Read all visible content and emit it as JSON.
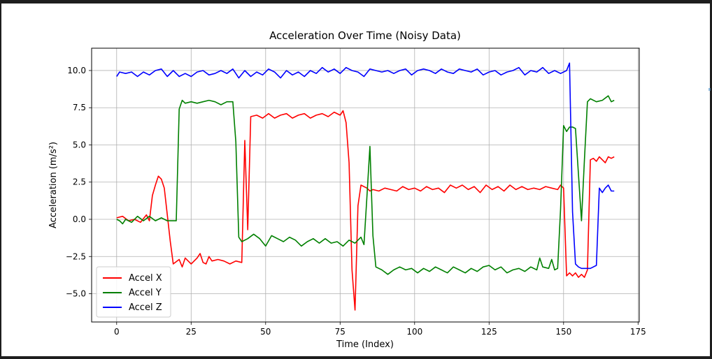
{
  "chart_data": {
    "type": "line",
    "title": "Acceleration Over Time (Noisy Data)",
    "xlabel": "Time (Index)",
    "ylabel": "Acceleration (m/s²)",
    "xlim": [
      -8.4,
      175.4
    ],
    "ylim": [
      -6.9,
      11.5
    ],
    "xticks": [
      0,
      25,
      50,
      75,
      100,
      125,
      150,
      175
    ],
    "yticks": [
      -5.0,
      -2.5,
      0.0,
      2.5,
      5.0,
      7.5,
      10.0
    ],
    "grid": true,
    "legend": "bottom-left",
    "series": [
      {
        "name": "Accel X",
        "color": "#ff0000",
        "points": [
          [
            0,
            0.1
          ],
          [
            2,
            0.2
          ],
          [
            4,
            -0.1
          ],
          [
            6,
            0.0
          ],
          [
            8,
            -0.2
          ],
          [
            10,
            0.3
          ],
          [
            11,
            -0.1
          ],
          [
            12,
            1.6
          ],
          [
            13,
            2.3
          ],
          [
            14,
            2.9
          ],
          [
            15,
            2.7
          ],
          [
            16,
            2.1
          ],
          [
            17,
            0.3
          ],
          [
            18,
            -1.5
          ],
          [
            19,
            -3.0
          ],
          [
            21,
            -2.7
          ],
          [
            22,
            -3.2
          ],
          [
            23,
            -2.6
          ],
          [
            25,
            -3.0
          ],
          [
            27,
            -2.6
          ],
          [
            28,
            -2.3
          ],
          [
            29,
            -2.9
          ],
          [
            30,
            -3.0
          ],
          [
            31,
            -2.5
          ],
          [
            32,
            -2.8
          ],
          [
            34,
            -2.7
          ],
          [
            36,
            -2.8
          ],
          [
            38,
            -3.0
          ],
          [
            40,
            -2.8
          ],
          [
            42,
            -2.9
          ],
          [
            43,
            5.3
          ],
          [
            44,
            -0.7
          ],
          [
            45,
            6.9
          ],
          [
            47,
            7.0
          ],
          [
            49,
            6.8
          ],
          [
            51,
            7.1
          ],
          [
            53,
            6.8
          ],
          [
            55,
            7.0
          ],
          [
            57,
            7.1
          ],
          [
            59,
            6.8
          ],
          [
            61,
            7.0
          ],
          [
            63,
            7.1
          ],
          [
            65,
            6.8
          ],
          [
            67,
            7.0
          ],
          [
            69,
            7.1
          ],
          [
            71,
            6.9
          ],
          [
            73,
            7.2
          ],
          [
            75,
            7.0
          ],
          [
            76,
            7.3
          ],
          [
            77,
            6.5
          ],
          [
            78,
            3.8
          ],
          [
            79,
            -3.4
          ],
          [
            80,
            -6.1
          ],
          [
            81,
            0.9
          ],
          [
            82,
            2.3
          ],
          [
            84,
            2.1
          ],
          [
            85,
            1.9
          ],
          [
            86,
            2.0
          ],
          [
            88,
            1.9
          ],
          [
            90,
            2.1
          ],
          [
            92,
            2.0
          ],
          [
            94,
            1.9
          ],
          [
            96,
            2.2
          ],
          [
            98,
            2.0
          ],
          [
            100,
            2.1
          ],
          [
            102,
            1.9
          ],
          [
            104,
            2.2
          ],
          [
            106,
            2.0
          ],
          [
            108,
            2.1
          ],
          [
            110,
            1.8
          ],
          [
            112,
            2.3
          ],
          [
            114,
            2.1
          ],
          [
            116,
            2.3
          ],
          [
            118,
            2.0
          ],
          [
            120,
            2.2
          ],
          [
            122,
            1.8
          ],
          [
            124,
            2.3
          ],
          [
            126,
            2.0
          ],
          [
            128,
            2.2
          ],
          [
            130,
            1.9
          ],
          [
            132,
            2.3
          ],
          [
            134,
            2.0
          ],
          [
            136,
            2.2
          ],
          [
            138,
            2.0
          ],
          [
            140,
            2.1
          ],
          [
            142,
            2.0
          ],
          [
            144,
            2.2
          ],
          [
            146,
            2.1
          ],
          [
            148,
            2.0
          ],
          [
            149,
            2.3
          ],
          [
            150,
            2.1
          ],
          [
            151,
            -3.8
          ],
          [
            152,
            -3.6
          ],
          [
            153,
            -3.8
          ],
          [
            154,
            -3.6
          ],
          [
            155,
            -3.9
          ],
          [
            156,
            -3.7
          ],
          [
            157,
            -3.9
          ],
          [
            158,
            -3.4
          ],
          [
            159,
            4.0
          ],
          [
            160,
            4.1
          ],
          [
            161,
            3.9
          ],
          [
            162,
            4.2
          ],
          [
            163,
            4.0
          ],
          [
            164,
            3.8
          ],
          [
            165,
            4.2
          ],
          [
            166,
            4.1
          ],
          [
            167,
            4.2
          ]
        ]
      },
      {
        "name": "Accel Y",
        "color": "#008000",
        "points": [
          [
            0,
            0.0
          ],
          [
            1,
            -0.1
          ],
          [
            2,
            -0.3
          ],
          [
            3,
            0.0
          ],
          [
            5,
            -0.2
          ],
          [
            7,
            0.2
          ],
          [
            9,
            -0.1
          ],
          [
            11,
            0.2
          ],
          [
            13,
            -0.1
          ],
          [
            15,
            0.1
          ],
          [
            17,
            -0.1
          ],
          [
            19,
            -0.1
          ],
          [
            20,
            -0.1
          ],
          [
            21,
            7.4
          ],
          [
            22,
            8.0
          ],
          [
            23,
            7.8
          ],
          [
            25,
            7.9
          ],
          [
            27,
            7.8
          ],
          [
            29,
            7.9
          ],
          [
            31,
            8.0
          ],
          [
            33,
            7.9
          ],
          [
            35,
            7.7
          ],
          [
            37,
            7.9
          ],
          [
            39,
            7.9
          ],
          [
            40,
            5.2
          ],
          [
            41,
            -1.2
          ],
          [
            42,
            -1.5
          ],
          [
            44,
            -1.3
          ],
          [
            46,
            -1.0
          ],
          [
            48,
            -1.3
          ],
          [
            50,
            -1.8
          ],
          [
            52,
            -1.1
          ],
          [
            54,
            -1.3
          ],
          [
            56,
            -1.5
          ],
          [
            58,
            -1.2
          ],
          [
            60,
            -1.4
          ],
          [
            62,
            -1.8
          ],
          [
            64,
            -1.5
          ],
          [
            66,
            -1.3
          ],
          [
            68,
            -1.6
          ],
          [
            70,
            -1.3
          ],
          [
            72,
            -1.6
          ],
          [
            74,
            -1.5
          ],
          [
            76,
            -1.8
          ],
          [
            78,
            -1.4
          ],
          [
            80,
            -1.6
          ],
          [
            82,
            -1.2
          ],
          [
            83,
            -1.7
          ],
          [
            84,
            1.5
          ],
          [
            85,
            4.9
          ],
          [
            86,
            -1.1
          ],
          [
            87,
            -3.2
          ],
          [
            89,
            -3.4
          ],
          [
            91,
            -3.7
          ],
          [
            93,
            -3.4
          ],
          [
            95,
            -3.2
          ],
          [
            97,
            -3.4
          ],
          [
            99,
            -3.3
          ],
          [
            101,
            -3.6
          ],
          [
            103,
            -3.3
          ],
          [
            105,
            -3.5
          ],
          [
            107,
            -3.2
          ],
          [
            109,
            -3.4
          ],
          [
            111,
            -3.6
          ],
          [
            113,
            -3.2
          ],
          [
            115,
            -3.4
          ],
          [
            117,
            -3.6
          ],
          [
            119,
            -3.3
          ],
          [
            121,
            -3.5
          ],
          [
            123,
            -3.2
          ],
          [
            125,
            -3.1
          ],
          [
            127,
            -3.4
          ],
          [
            129,
            -3.2
          ],
          [
            131,
            -3.6
          ],
          [
            133,
            -3.4
          ],
          [
            135,
            -3.3
          ],
          [
            137,
            -3.5
          ],
          [
            139,
            -3.2
          ],
          [
            141,
            -3.4
          ],
          [
            142,
            -2.6
          ],
          [
            143,
            -3.2
          ],
          [
            145,
            -3.3
          ],
          [
            146,
            -2.7
          ],
          [
            147,
            -3.4
          ],
          [
            148,
            -3.3
          ],
          [
            149,
            0.7
          ],
          [
            150,
            6.3
          ],
          [
            151,
            5.9
          ],
          [
            152,
            6.2
          ],
          [
            153,
            6.2
          ],
          [
            154,
            6.1
          ],
          [
            155,
            3.0
          ],
          [
            156,
            -0.1
          ],
          [
            157,
            4.0
          ],
          [
            158,
            7.9
          ],
          [
            159,
            8.1
          ],
          [
            161,
            7.9
          ],
          [
            163,
            8.0
          ],
          [
            165,
            8.3
          ],
          [
            166,
            7.9
          ],
          [
            167,
            8.0
          ]
        ]
      },
      {
        "name": "Accel Z",
        "color": "#0000ff",
        "points": [
          [
            0,
            9.6
          ],
          [
            1,
            9.9
          ],
          [
            3,
            9.8
          ],
          [
            5,
            9.9
          ],
          [
            7,
            9.6
          ],
          [
            9,
            9.9
          ],
          [
            11,
            9.7
          ],
          [
            13,
            10.0
          ],
          [
            15,
            10.1
          ],
          [
            17,
            9.6
          ],
          [
            19,
            10.0
          ],
          [
            21,
            9.6
          ],
          [
            23,
            9.8
          ],
          [
            25,
            9.6
          ],
          [
            27,
            9.9
          ],
          [
            29,
            10.0
          ],
          [
            31,
            9.7
          ],
          [
            33,
            9.8
          ],
          [
            35,
            10.0
          ],
          [
            37,
            9.8
          ],
          [
            39,
            10.1
          ],
          [
            41,
            9.5
          ],
          [
            43,
            10.0
          ],
          [
            45,
            9.6
          ],
          [
            47,
            9.9
          ],
          [
            49,
            9.7
          ],
          [
            51,
            10.1
          ],
          [
            53,
            9.9
          ],
          [
            55,
            9.5
          ],
          [
            57,
            10.0
          ],
          [
            59,
            9.7
          ],
          [
            61,
            9.9
          ],
          [
            63,
            9.6
          ],
          [
            65,
            10.0
          ],
          [
            67,
            9.8
          ],
          [
            69,
            10.2
          ],
          [
            71,
            9.9
          ],
          [
            73,
            10.1
          ],
          [
            75,
            9.8
          ],
          [
            77,
            10.2
          ],
          [
            79,
            10.0
          ],
          [
            81,
            9.9
          ],
          [
            83,
            9.6
          ],
          [
            85,
            10.1
          ],
          [
            87,
            10.0
          ],
          [
            89,
            9.9
          ],
          [
            91,
            10.0
          ],
          [
            93,
            9.8
          ],
          [
            95,
            10.0
          ],
          [
            97,
            10.1
          ],
          [
            99,
            9.7
          ],
          [
            101,
            10.0
          ],
          [
            103,
            10.1
          ],
          [
            105,
            10.0
          ],
          [
            107,
            9.8
          ],
          [
            109,
            10.1
          ],
          [
            111,
            9.9
          ],
          [
            113,
            9.8
          ],
          [
            115,
            10.1
          ],
          [
            117,
            10.0
          ],
          [
            119,
            9.9
          ],
          [
            121,
            10.1
          ],
          [
            123,
            9.7
          ],
          [
            125,
            9.9
          ],
          [
            127,
            10.0
          ],
          [
            129,
            9.7
          ],
          [
            131,
            9.9
          ],
          [
            133,
            10.0
          ],
          [
            135,
            10.2
          ],
          [
            137,
            9.7
          ],
          [
            139,
            10.0
          ],
          [
            141,
            9.9
          ],
          [
            143,
            10.2
          ],
          [
            145,
            9.8
          ],
          [
            147,
            10.0
          ],
          [
            149,
            9.8
          ],
          [
            151,
            10.0
          ],
          [
            152,
            10.5
          ],
          [
            153,
            0.5
          ],
          [
            154,
            -3.0
          ],
          [
            155,
            -3.2
          ],
          [
            156,
            -3.3
          ],
          [
            157,
            -3.3
          ],
          [
            158,
            -3.3
          ],
          [
            159,
            -3.3
          ],
          [
            161,
            -3.1
          ],
          [
            162,
            2.1
          ],
          [
            163,
            1.8
          ],
          [
            164,
            2.1
          ],
          [
            165,
            2.3
          ],
          [
            166,
            1.9
          ],
          [
            167,
            1.9
          ]
        ]
      }
    ]
  }
}
